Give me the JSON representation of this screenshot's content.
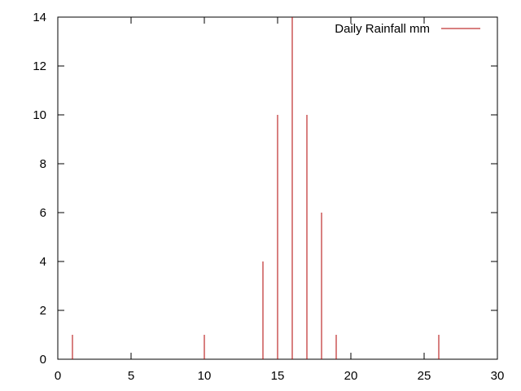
{
  "chart_data": {
    "type": "bar",
    "style": "impulses",
    "x": [
      1,
      10,
      14,
      15,
      16,
      17,
      18,
      19,
      26
    ],
    "series": [
      {
        "name": "Daily Rainfall mm",
        "values": [
          1,
          1,
          4,
          10,
          14,
          10,
          6,
          1,
          1
        ],
        "color": "#b00000"
      }
    ],
    "xlim": [
      0,
      30
    ],
    "ylim": [
      0,
      14
    ],
    "x_ticks": [
      0,
      5,
      10,
      15,
      20,
      25,
      30
    ],
    "y_ticks": [
      0,
      2,
      4,
      6,
      8,
      10,
      12,
      14
    ],
    "title": "",
    "xlabel": "",
    "ylabel": "",
    "grid": false,
    "legend_position": "top-right"
  }
}
